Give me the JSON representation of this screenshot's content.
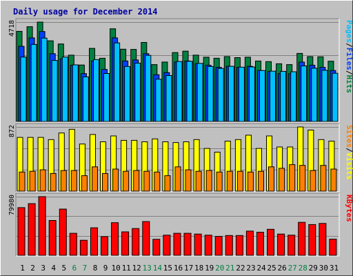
{
  "colors": {
    "background": "#c0c0c0",
    "panel": "#c0c0c0",
    "pages": "#00c0ff",
    "files": "#0040ff",
    "hits": "#008040",
    "visits": "#ffff00",
    "sites": "#ff8000",
    "kbytes": "#ff0000",
    "weekday_label": "#000000",
    "weekend_label": "#008040",
    "grid": "#808080",
    "title": "#0000a0"
  },
  "chart_data": {
    "type": "bar",
    "title": "Daily usage for December 2014",
    "categories": [
      "1",
      "2",
      "3",
      "4",
      "5",
      "6",
      "7",
      "8",
      "9",
      "10",
      "11",
      "12",
      "13",
      "14",
      "15",
      "16",
      "17",
      "18",
      "19",
      "20",
      "21",
      "22",
      "23",
      "24",
      "25",
      "26",
      "27",
      "28",
      "29",
      "30",
      "31"
    ],
    "weekend_days": [
      "6",
      "7",
      "13",
      "14",
      "20",
      "21",
      "27",
      "28"
    ],
    "panels": [
      {
        "ylabel_parts": [
          {
            "text": "Pages",
            "color": "#00c0ff"
          },
          {
            "text": "/",
            "color": "#000000"
          },
          {
            "text": "Files",
            "color": "#0040ff"
          },
          {
            "text": "/",
            "color": "#000000"
          },
          {
            "text": "Hits",
            "color": "#008040"
          }
        ],
        "ymax_label": "4718",
        "ylim": [
          0,
          4718
        ],
        "series": [
          {
            "name": "Hits",
            "color": "#008040",
            "values": [
              4280,
              4500,
              4718,
              3830,
              3680,
              3150,
              2680,
              3470,
              3000,
              4400,
              3430,
              3420,
              3750,
              2700,
              2820,
              3270,
              3340,
              3150,
              3050,
              3000,
              3080,
              3030,
              3050,
              2870,
              2840,
              2740,
              2700,
              3230,
              3080,
              3070,
              2860
            ]
          },
          {
            "name": "Files",
            "color": "#0040ff",
            "values": [
              3700,
              4100,
              4400,
              3350,
              3100,
              2800,
              2400,
              3000,
              2600,
              4100,
              3000,
              3050,
              3350,
              2350,
              2450,
              2950,
              3000,
              2880,
              2800,
              2700,
              2750,
              2700,
              2750,
              2550,
              2500,
              2400,
              2400,
              2950,
              2800,
              2700,
              2550
            ]
          },
          {
            "name": "Pages",
            "color": "#00c0ff",
            "values": [
              3320,
              3920,
              4220,
              3160,
              3320,
              2950,
              2380,
              3200,
              2540,
              3990,
              2870,
              3030,
              3400,
              2270,
              2440,
              3110,
              3120,
              3020,
              2870,
              2780,
              2880,
              2840,
              2850,
              2680,
              2650,
              2640,
              2620,
              2900,
              2790,
              2690,
              2550
            ]
          }
        ]
      },
      {
        "ylabel_parts": [
          {
            "text": "Sites",
            "color": "#ff8000"
          },
          {
            "text": "/",
            "color": "#000000"
          },
          {
            "text": "Visits",
            "color": "#ffff00"
          }
        ],
        "ymax_label": "872",
        "ylim": [
          0,
          872
        ],
        "series": [
          {
            "name": "Visits",
            "color": "#ffff00",
            "values": [
              730,
              730,
              730,
              700,
              790,
              840,
              640,
              770,
              670,
              750,
              690,
              690,
              670,
              710,
              670,
              660,
              670,
              700,
              580,
              530,
              680,
              700,
              760,
              580,
              750,
              600,
              600,
              872,
              830,
              700,
              680
            ]
          },
          {
            "name": "Sites",
            "color": "#ff8000",
            "values": [
              260,
              270,
              290,
              240,
              280,
              280,
              210,
              330,
              240,
              300,
              270,
              280,
              270,
              260,
              210,
              330,
              290,
              270,
              280,
              260,
              270,
              270,
              260,
              270,
              330,
              310,
              360,
              350,
              280,
              350,
              300
            ]
          }
        ]
      },
      {
        "ylabel_parts": [
          {
            "text": "KBytes",
            "color": "#ff0000"
          }
        ],
        "ymax_label": "79980",
        "ylim": [
          0,
          79980
        ],
        "series": [
          {
            "name": "KBytes",
            "color": "#ff0000",
            "values": [
              65000,
              70500,
              79980,
              47500,
              63000,
              30000,
              20500,
              37500,
              25500,
              44500,
              32000,
              36500,
              46000,
              21800,
              27500,
              30000,
              30000,
              29000,
              27500,
              25800,
              27000,
              27000,
              33000,
              31500,
              35500,
              29000,
              27500,
              45000,
              42000,
              43500,
              22000
            ]
          }
        ]
      }
    ]
  }
}
